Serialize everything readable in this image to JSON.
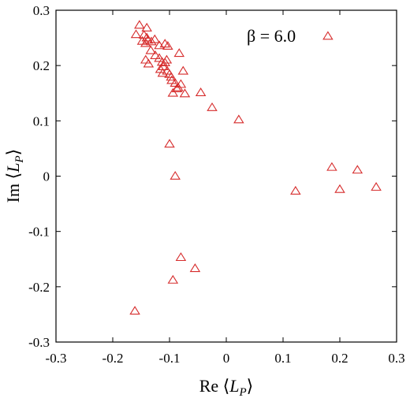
{
  "chart_data": {
    "type": "scatter",
    "xlabel": "Re ⟨L_P⟩",
    "ylabel": "Im ⟨L_P⟩",
    "xlim": [
      -0.3,
      0.3
    ],
    "ylim": [
      -0.3,
      0.3
    ],
    "x_ticks": [
      "-0.3",
      "-0.2",
      "-0.1",
      "0",
      "0.1",
      "0.2",
      "0.3"
    ],
    "y_ticks": [
      "0.3",
      "0.2",
      "0.1",
      "0",
      "-0.1",
      "-0.2",
      "-0.3"
    ],
    "annotation": "β = 6.0",
    "grid": false,
    "legend": "none",
    "marker": "open-triangle",
    "marker_color": "#d62b2b",
    "series": [
      {
        "points": [
          [
            -0.159,
            0.256
          ],
          [
            -0.153,
            0.273
          ],
          [
            -0.14,
            0.268
          ],
          [
            -0.145,
            0.255
          ],
          [
            -0.14,
            0.25
          ],
          [
            -0.148,
            0.244
          ],
          [
            -0.142,
            0.24
          ],
          [
            -0.138,
            0.246
          ],
          [
            -0.132,
            0.243
          ],
          [
            -0.126,
            0.247
          ],
          [
            -0.118,
            0.236
          ],
          [
            -0.108,
            0.239
          ],
          [
            -0.103,
            0.235
          ],
          [
            -0.083,
            0.222
          ],
          [
            -0.133,
            0.227
          ],
          [
            -0.125,
            0.218
          ],
          [
            -0.142,
            0.21
          ],
          [
            -0.137,
            0.203
          ],
          [
            -0.118,
            0.213
          ],
          [
            -0.113,
            0.206
          ],
          [
            -0.111,
            0.198
          ],
          [
            -0.108,
            0.205
          ],
          [
            -0.105,
            0.21
          ],
          [
            -0.116,
            0.193
          ],
          [
            -0.112,
            0.186
          ],
          [
            -0.104,
            0.19
          ],
          [
            -0.1,
            0.184
          ],
          [
            -0.097,
            0.179
          ],
          [
            -0.096,
            0.173
          ],
          [
            -0.09,
            0.168
          ],
          [
            -0.085,
            0.16
          ],
          [
            -0.087,
            0.158
          ],
          [
            -0.08,
            0.166
          ],
          [
            -0.076,
            0.19
          ],
          [
            -0.073,
            0.149
          ],
          [
            -0.094,
            0.15
          ],
          [
            -0.045,
            0.151
          ],
          [
            -0.025,
            0.124
          ],
          [
            0.022,
            0.102
          ],
          [
            0.179,
            0.253
          ],
          [
            -0.1,
            0.058
          ],
          [
            -0.09,
            0.0
          ],
          [
            0.186,
            0.016
          ],
          [
            0.231,
            0.011
          ],
          [
            0.264,
            -0.02
          ],
          [
            0.122,
            -0.027
          ],
          [
            0.2,
            -0.024
          ],
          [
            -0.08,
            -0.147
          ],
          [
            -0.055,
            -0.167
          ],
          [
            -0.094,
            -0.188
          ],
          [
            -0.161,
            -0.244
          ]
        ]
      }
    ]
  }
}
